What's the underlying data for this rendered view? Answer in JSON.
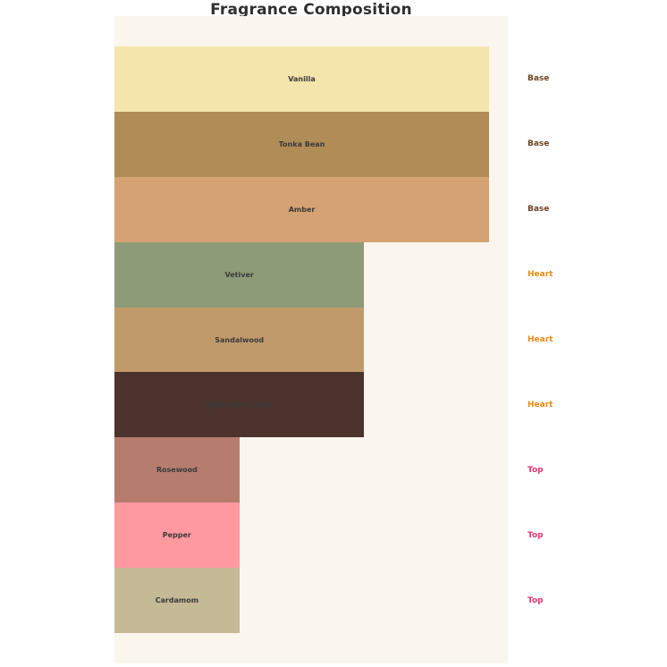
{
  "title": "Fragrance Composition",
  "colors": {
    "figure_background": "#ffffff",
    "plot_background": "#faf6ee",
    "title_text": "#2f2f2f",
    "bar_label_text": "#3a3a3a",
    "category_label_colors": {
      "Base": "#6b4423",
      "Heart": "#f28a0d",
      "Top": "#e8336e"
    }
  },
  "chart_data": {
    "type": "bar",
    "orientation": "horizontal",
    "title": "Fragrance Composition",
    "xlabel": "",
    "ylabel": "",
    "xlim": [
      0,
      3.15
    ],
    "grid": false,
    "legend": false,
    "axes_visible": false,
    "bar_label_position": "center",
    "category_label_position": "right-of-plot",
    "notes": [
      {
        "name": "Vanilla",
        "category": "Base",
        "value": 3,
        "color": "#f3e5ab"
      },
      {
        "name": "Tonka Bean",
        "category": "Base",
        "value": 3,
        "color": "#b08d57"
      },
      {
        "name": "Amber",
        "category": "Base",
        "value": 3,
        "color": "#d4a273"
      },
      {
        "name": "Vetiver",
        "category": "Heart",
        "value": 2,
        "color": "#8d9b78"
      },
      {
        "name": "Sandalwood",
        "category": "Heart",
        "value": 2,
        "color": "#c19a6b"
      },
      {
        "name": "Agarwood (Oud)",
        "category": "Heart",
        "value": 2,
        "color": "#4c332d"
      },
      {
        "name": "Rosewood",
        "category": "Top",
        "value": 1,
        "color": "#b67d6e"
      },
      {
        "name": "Pepper",
        "category": "Top",
        "value": 1,
        "color": "#ff99a0"
      },
      {
        "name": "Cardamom",
        "category": "Top",
        "value": 1,
        "color": "#c5b996"
      }
    ]
  }
}
